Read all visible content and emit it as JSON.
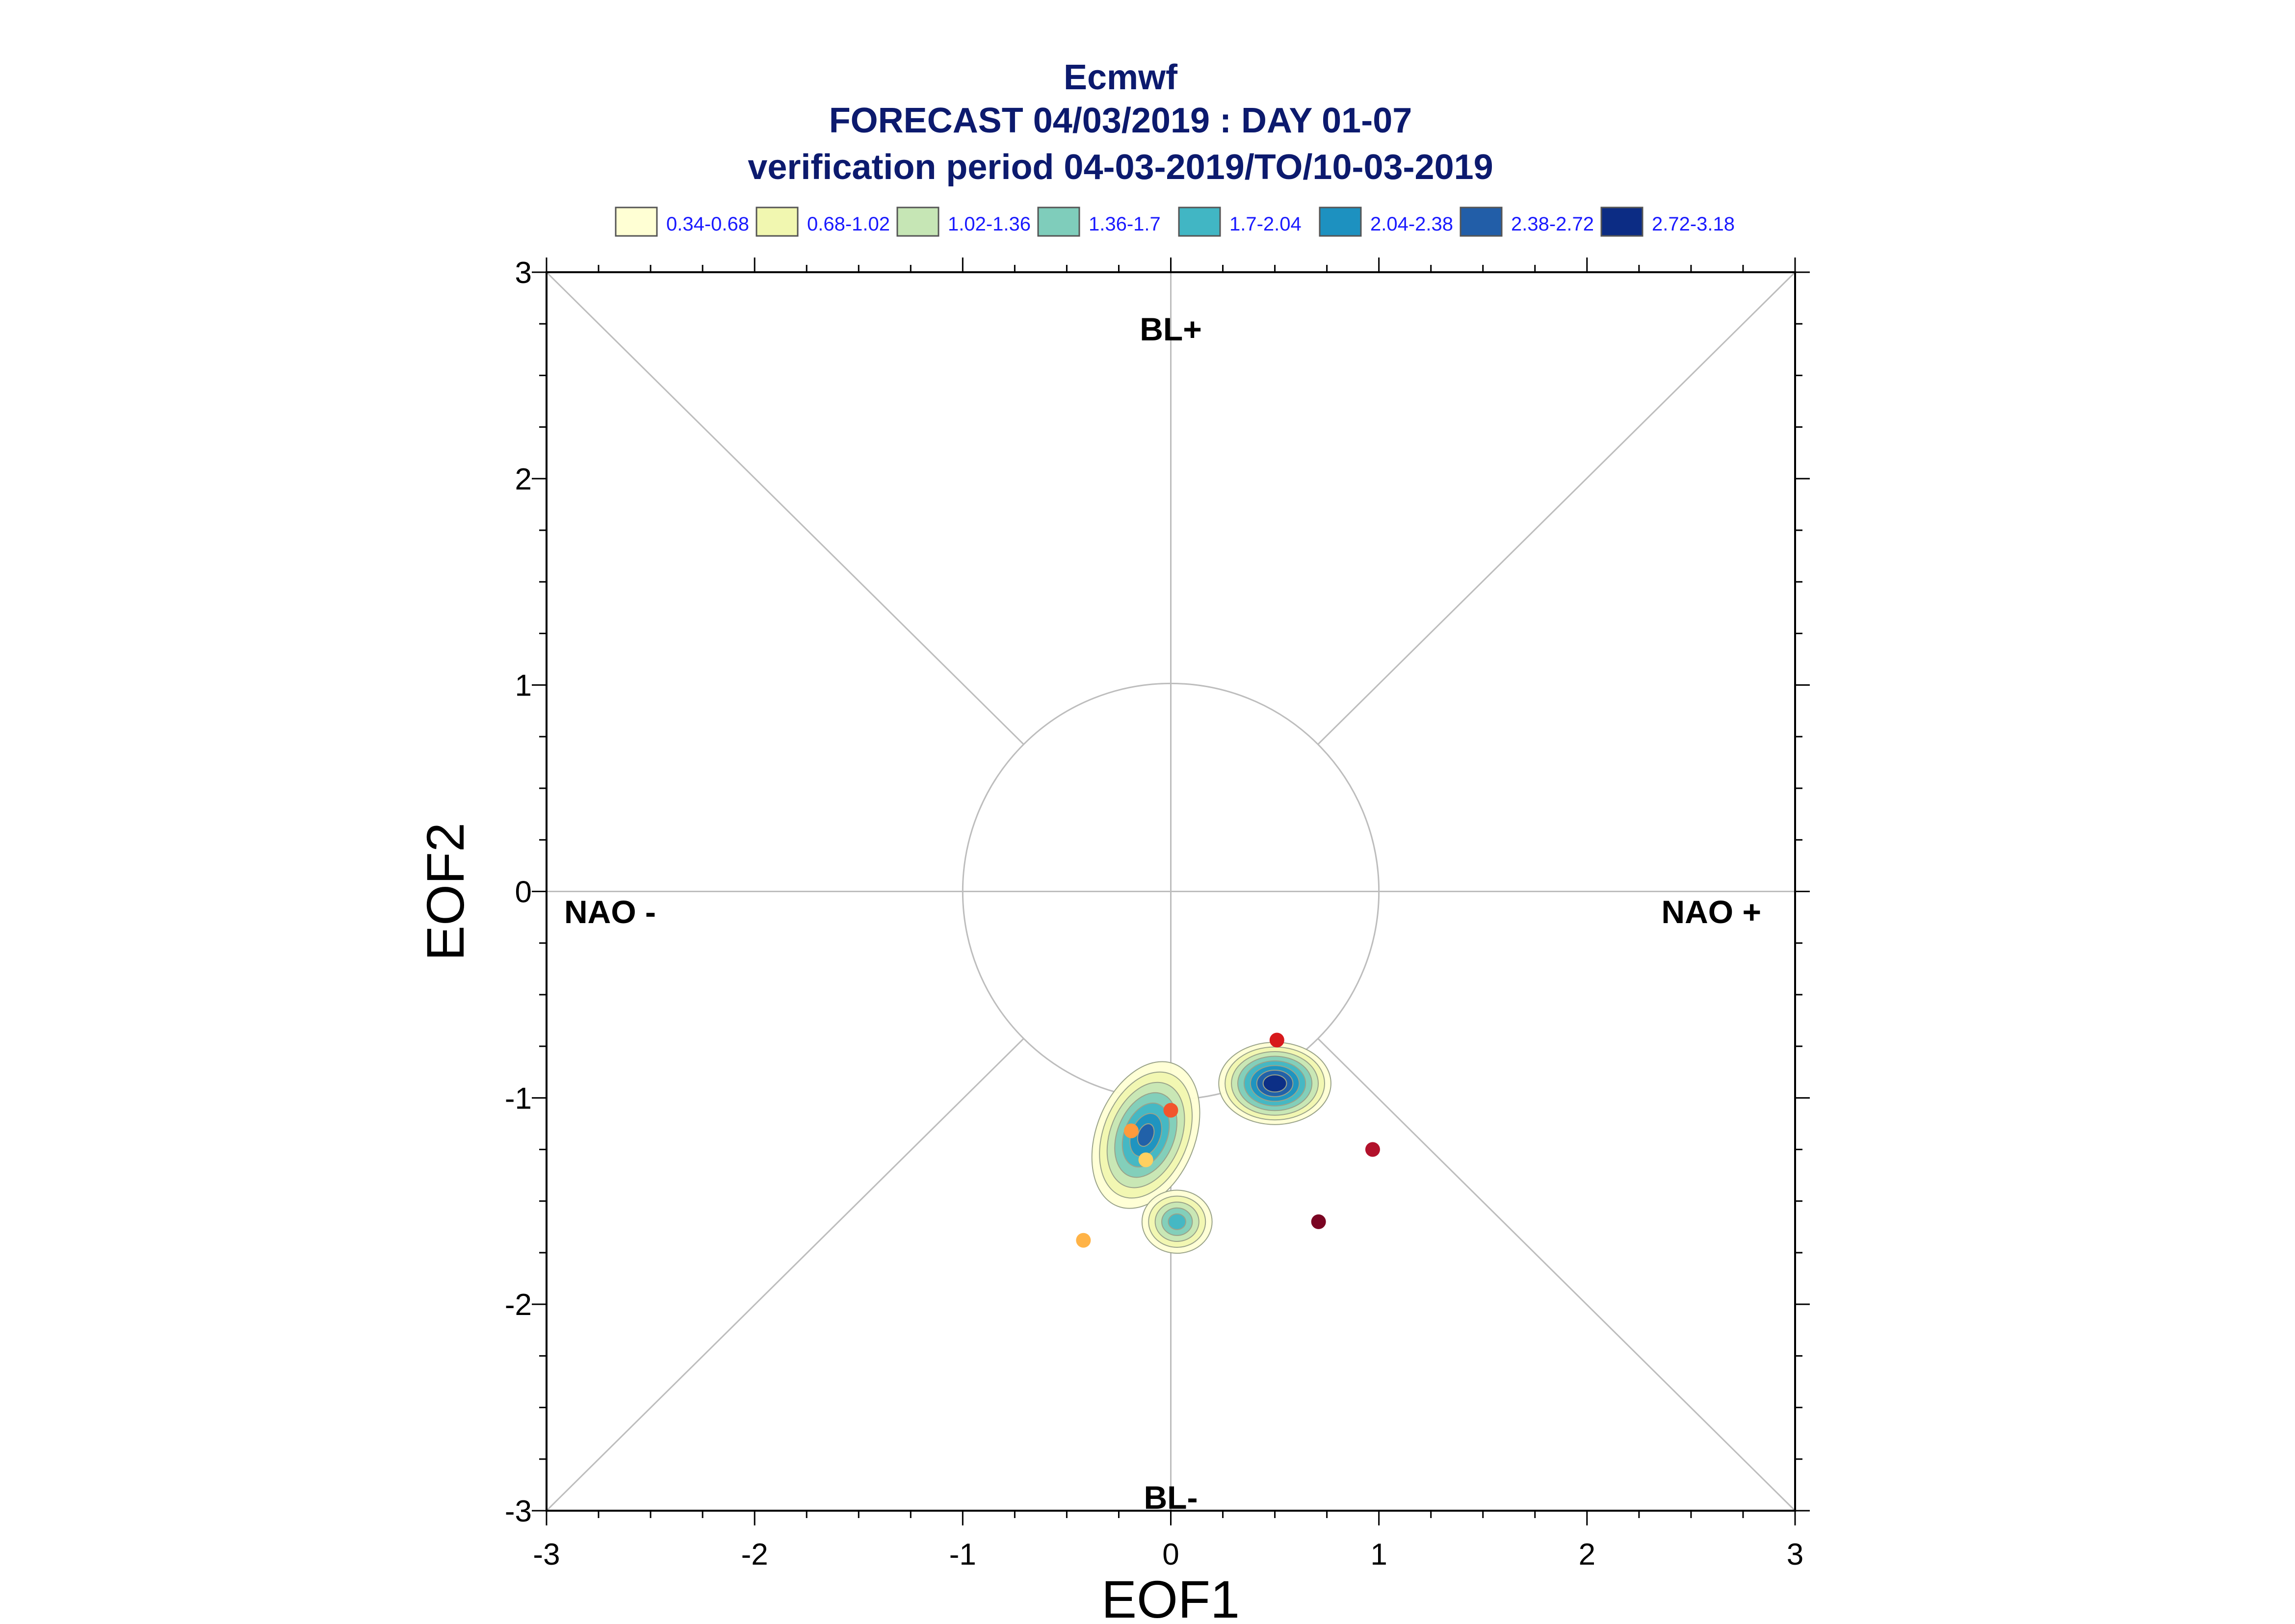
{
  "chart_data": {
    "type": "scatter",
    "title": "Ecmwf",
    "subtitle": "FORECAST 04/03/2019 : DAY 01-07",
    "subtitle2": "verification period 04-03-2019/TO/10-03-2019",
    "xlabel": "EOF1",
    "ylabel": "EOF2",
    "xlim": [
      -3,
      3
    ],
    "ylim": [
      -3,
      3
    ],
    "xticks": [
      "-3",
      "-2",
      "-1",
      "0",
      "1",
      "2",
      "3"
    ],
    "yticks": [
      "-3",
      "-2",
      "-1",
      "0",
      "1",
      "2",
      "3"
    ],
    "regions": {
      "top": "BL+",
      "bottom": "BL-",
      "left": "NAO -",
      "right": "NAO +"
    },
    "unit_circle_radius": 1,
    "legend": [
      {
        "label": "0.34-0.68",
        "color": "#ffffd4"
      },
      {
        "label": "0.68-1.02",
        "color": "#f1f7b0"
      },
      {
        "label": "1.02-1.36",
        "color": "#c6e6b5"
      },
      {
        "label": "1.36-1.7",
        "color": "#7fcdbb"
      },
      {
        "label": "1.7-2.04",
        "color": "#41b6c4"
      },
      {
        "label": "2.04-2.38",
        "color": "#1d91c0"
      },
      {
        "label": "2.38-2.72",
        "color": "#225ea8"
      },
      {
        "label": "2.72-3.18",
        "color": "#0c2c84"
      }
    ],
    "density_peaks": [
      {
        "x": -0.12,
        "y": -1.18,
        "peak": 2.5
      },
      {
        "x": 0.5,
        "y": -0.93,
        "peak": 3.1
      },
      {
        "x": 0.03,
        "y": -1.6,
        "peak": 1.9
      }
    ],
    "points": [
      {
        "x": -0.42,
        "y": -1.69,
        "color": "#ffb347"
      },
      {
        "x": -0.12,
        "y": -1.3,
        "color": "#ffd060"
      },
      {
        "x": -0.19,
        "y": -1.16,
        "color": "#ff9a3c"
      },
      {
        "x": 0.0,
        "y": -1.06,
        "color": "#f2552c"
      },
      {
        "x": 0.51,
        "y": -0.72,
        "color": "#d7191c"
      },
      {
        "x": 0.97,
        "y": -1.25,
        "color": "#b2112b"
      },
      {
        "x": 0.71,
        "y": -1.6,
        "color": "#7a0422"
      }
    ]
  }
}
